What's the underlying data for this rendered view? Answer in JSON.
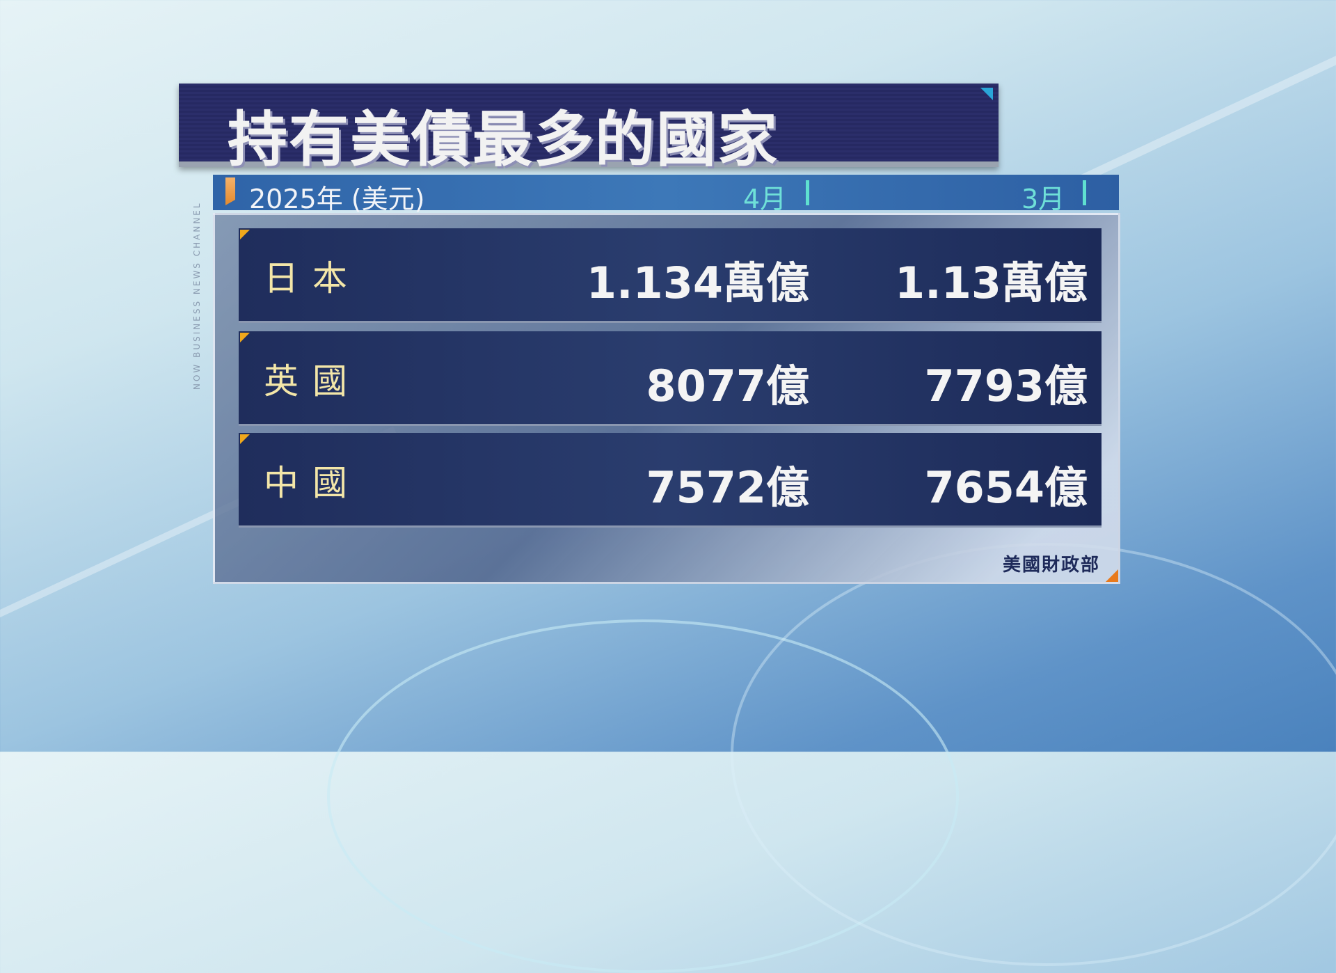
{
  "title": "持有美債最多的國家",
  "header": {
    "year_label": "2025年 (美元)",
    "columns": [
      "4月",
      "3月"
    ]
  },
  "rows": [
    {
      "country": "日本",
      "april": "1.134萬億",
      "march": "1.13萬億"
    },
    {
      "country": "英國",
      "april": "8077億",
      "march": "7793億"
    },
    {
      "country": "中國",
      "april": "7572億",
      "march": "7654億"
    }
  ],
  "source": "美國財政部",
  "side_label": "NOW BUSINESS NEWS CHANNEL",
  "colors": {
    "title_bg": "#2b2e6a",
    "header_bg": "#3d78b8",
    "row_bg": "#1f2d5c",
    "country_text": "#f3e6a8",
    "accent": "#f0a81c",
    "column_marker": "#5fe0d0"
  }
}
